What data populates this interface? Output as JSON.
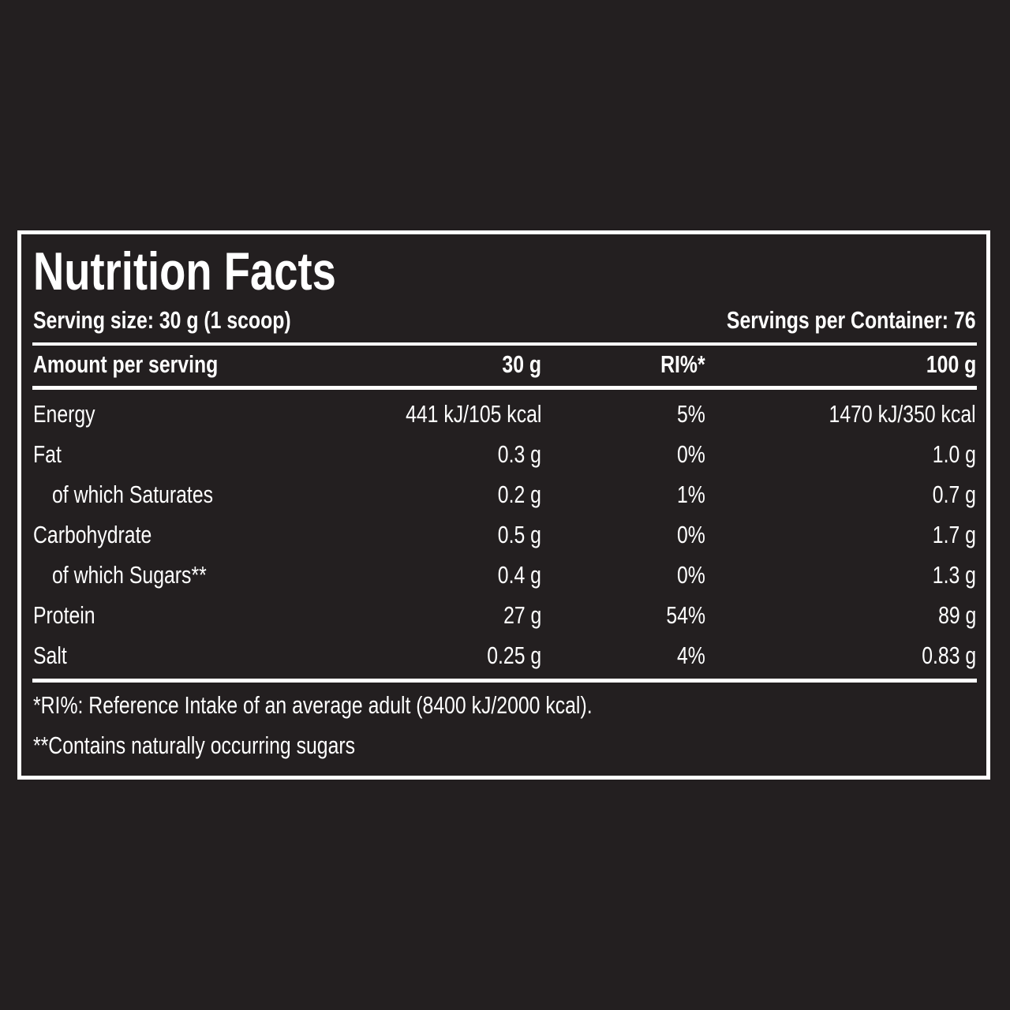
{
  "title": "Nutrition Facts",
  "serving_size": "Serving size: 30 g (1 scoop)",
  "servings_per_container": "Servings per Container: 76",
  "header": {
    "label": "Amount per serving",
    "col1": "30 g",
    "col2": "RI%*",
    "col3": "100 g"
  },
  "rows": [
    {
      "name": "Energy",
      "per_serving": "441 kJ/105 kcal",
      "ri": "5%",
      "per_100g": "1470 kJ/350 kcal"
    },
    {
      "name": "Fat",
      "per_serving": "0.3 g",
      "ri": "0%",
      "per_100g": "1.0 g"
    },
    {
      "name": "of which Saturates",
      "per_serving": "0.2 g",
      "ri": "1%",
      "per_100g": "0.7 g"
    },
    {
      "name": "Carbohydrate",
      "per_serving": "0.5 g",
      "ri": "0%",
      "per_100g": "1.7 g"
    },
    {
      "name": "of which Sugars**",
      "per_serving": "0.4 g",
      "ri": "0%",
      "per_100g": "1.3 g"
    },
    {
      "name": "Protein",
      "per_serving": "27 g",
      "ri": "54%",
      "per_100g": "89 g"
    },
    {
      "name": "Salt",
      "per_serving": "0.25 g",
      "ri": "4%",
      "per_100g": "0.83 g"
    }
  ],
  "footnotes": [
    "*RI%: Reference Intake of an average adult (8400 kJ/2000 kcal).",
    "**Contains naturally occurring sugars"
  ]
}
